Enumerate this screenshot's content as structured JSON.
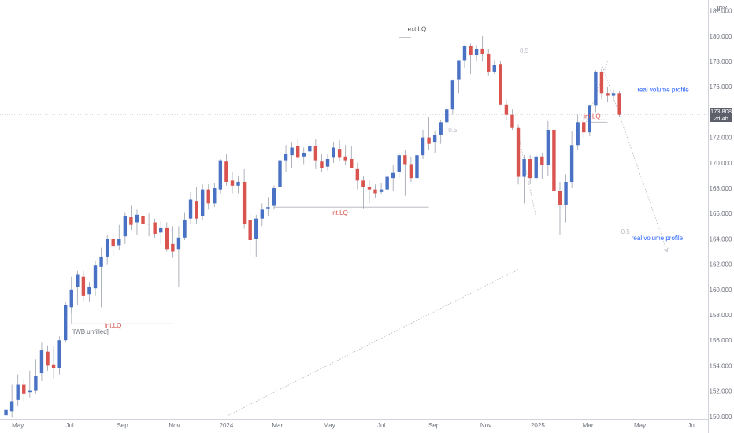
{
  "currency": "JPY",
  "price_badge": {
    "price": "173.808",
    "countdown": "2d 4h"
  },
  "colors": {
    "up": "#4a72c4",
    "down": "#d9534f",
    "axis_text": "#6b6f7a",
    "line": "#b2b5be",
    "blue_text": "#2962ff",
    "red_text": "#d9534f"
  },
  "chart_data": {
    "type": "candlestick",
    "timeframe": "weekly",
    "ylim": [
      149.8,
      182.6
    ],
    "xlim": [
      "2023-04-10",
      "2025-07-20"
    ],
    "y_ticks": [
      "150.000",
      "152.000",
      "154.000",
      "156.000",
      "158.000",
      "160.000",
      "162.000",
      "164.000",
      "166.000",
      "168.000",
      "170.000",
      "172.000",
      "174.000",
      "176.000",
      "178.000",
      "180.000",
      "182.000"
    ],
    "x_ticks": [
      {
        "label": "May",
        "date": "2023-05-01"
      },
      {
        "label": "Jul",
        "date": "2023-07-01"
      },
      {
        "label": "Sep",
        "date": "2023-09-01"
      },
      {
        "label": "Nov",
        "date": "2023-11-01"
      },
      {
        "label": "2024",
        "date": "2024-01-01"
      },
      {
        "label": "Mar",
        "date": "2024-03-01"
      },
      {
        "label": "May",
        "date": "2024-05-01"
      },
      {
        "label": "Jul",
        "date": "2024-07-01"
      },
      {
        "label": "Sep",
        "date": "2024-09-01"
      },
      {
        "label": "Nov",
        "date": "2024-11-01"
      },
      {
        "label": "2025",
        "date": "2025-01-01"
      },
      {
        "label": "Mar",
        "date": "2025-03-01"
      },
      {
        "label": "May",
        "date": "2025-05-01"
      },
      {
        "label": "Jul",
        "date": "2025-07-01"
      }
    ],
    "candles": [
      {
        "date": "2023-04-17",
        "o": 150.1,
        "h": 150.7,
        "l": 149.7,
        "c": 150.5
      },
      {
        "date": "2023-04-24",
        "o": 150.4,
        "h": 152.5,
        "l": 149.9,
        "c": 151.2
      },
      {
        "date": "2023-05-01",
        "o": 151.3,
        "h": 153.3,
        "l": 150.8,
        "c": 152.5
      },
      {
        "date": "2023-05-08",
        "o": 152.5,
        "h": 152.9,
        "l": 151.2,
        "c": 151.8
      },
      {
        "date": "2023-05-15",
        "o": 151.9,
        "h": 153.6,
        "l": 151.5,
        "c": 152.0
      },
      {
        "date": "2023-05-22",
        "o": 152.0,
        "h": 154.5,
        "l": 151.8,
        "c": 153.2
      },
      {
        "date": "2023-05-29",
        "o": 153.4,
        "h": 155.8,
        "l": 152.8,
        "c": 155.2
      },
      {
        "date": "2023-06-05",
        "o": 155.1,
        "h": 155.6,
        "l": 153.6,
        "c": 154.0
      },
      {
        "date": "2023-06-12",
        "o": 154.1,
        "h": 155.5,
        "l": 153.0,
        "c": 153.8
      },
      {
        "date": "2023-06-19",
        "o": 153.8,
        "h": 156.3,
        "l": 153.3,
        "c": 156.0
      },
      {
        "date": "2023-06-26",
        "o": 156.0,
        "h": 159.0,
        "l": 155.8,
        "c": 158.8
      },
      {
        "date": "2023-07-03",
        "o": 158.6,
        "h": 161.0,
        "l": 158.1,
        "c": 160.0
      },
      {
        "date": "2023-07-10",
        "o": 160.2,
        "h": 161.5,
        "l": 158.8,
        "c": 161.2
      },
      {
        "date": "2023-07-17",
        "o": 161.0,
        "h": 161.5,
        "l": 159.1,
        "c": 159.5
      },
      {
        "date": "2023-07-24",
        "o": 159.6,
        "h": 160.6,
        "l": 159.0,
        "c": 160.2
      },
      {
        "date": "2023-07-31",
        "o": 160.1,
        "h": 162.3,
        "l": 159.5,
        "c": 161.9
      },
      {
        "date": "2023-08-07",
        "o": 161.8,
        "h": 163.3,
        "l": 158.6,
        "c": 162.6
      },
      {
        "date": "2023-08-14",
        "o": 162.6,
        "h": 164.3,
        "l": 162.0,
        "c": 164.0
      },
      {
        "date": "2023-08-21",
        "o": 164.0,
        "h": 164.4,
        "l": 162.6,
        "c": 163.4
      },
      {
        "date": "2023-08-28",
        "o": 163.5,
        "h": 165.1,
        "l": 163.1,
        "c": 164.0
      },
      {
        "date": "2023-09-04",
        "o": 164.2,
        "h": 166.1,
        "l": 163.6,
        "c": 165.8
      },
      {
        "date": "2023-09-11",
        "o": 165.7,
        "h": 166.6,
        "l": 164.7,
        "c": 165.1
      },
      {
        "date": "2023-09-18",
        "o": 165.3,
        "h": 166.3,
        "l": 164.3,
        "c": 165.9
      },
      {
        "date": "2023-09-25",
        "o": 165.8,
        "h": 166.6,
        "l": 164.6,
        "c": 165.2
      },
      {
        "date": "2023-10-02",
        "o": 165.2,
        "h": 166.0,
        "l": 164.2,
        "c": 165.2
      },
      {
        "date": "2023-10-09",
        "o": 165.3,
        "h": 165.6,
        "l": 164.1,
        "c": 164.4
      },
      {
        "date": "2023-10-16",
        "o": 164.5,
        "h": 165.4,
        "l": 163.6,
        "c": 164.9
      },
      {
        "date": "2023-10-23",
        "o": 164.9,
        "h": 165.3,
        "l": 163.0,
        "c": 163.2
      },
      {
        "date": "2023-10-30",
        "o": 163.6,
        "h": 165.0,
        "l": 162.5,
        "c": 163.0
      },
      {
        "date": "2023-11-06",
        "o": 163.2,
        "h": 165.0,
        "l": 160.2,
        "c": 164.1
      },
      {
        "date": "2023-11-13",
        "o": 164.1,
        "h": 166.1,
        "l": 163.9,
        "c": 165.5
      },
      {
        "date": "2023-11-20",
        "o": 165.6,
        "h": 167.7,
        "l": 165.2,
        "c": 167.1
      },
      {
        "date": "2023-11-27",
        "o": 167.0,
        "h": 168.1,
        "l": 165.2,
        "c": 165.6
      },
      {
        "date": "2023-12-04",
        "o": 165.8,
        "h": 168.3,
        "l": 165.5,
        "c": 167.9
      },
      {
        "date": "2023-12-11",
        "o": 167.9,
        "h": 168.3,
        "l": 166.3,
        "c": 166.8
      },
      {
        "date": "2023-12-18",
        "o": 166.8,
        "h": 168.4,
        "l": 166.5,
        "c": 168.0
      },
      {
        "date": "2023-12-25",
        "o": 167.9,
        "h": 170.3,
        "l": 167.6,
        "c": 170.2
      },
      {
        "date": "2024-01-01",
        "o": 170.1,
        "h": 170.7,
        "l": 168.2,
        "c": 168.5
      },
      {
        "date": "2024-01-08",
        "o": 168.6,
        "h": 169.3,
        "l": 167.6,
        "c": 168.2
      },
      {
        "date": "2024-01-15",
        "o": 168.2,
        "h": 169.0,
        "l": 167.6,
        "c": 168.5
      },
      {
        "date": "2024-01-22",
        "o": 168.5,
        "h": 169.5,
        "l": 164.8,
        "c": 165.2
      },
      {
        "date": "2024-01-29",
        "o": 165.5,
        "h": 166.0,
        "l": 162.8,
        "c": 163.9
      },
      {
        "date": "2024-02-05",
        "o": 164.0,
        "h": 165.9,
        "l": 162.6,
        "c": 165.6
      },
      {
        "date": "2024-02-12",
        "o": 165.6,
        "h": 166.8,
        "l": 165.0,
        "c": 166.3
      },
      {
        "date": "2024-02-19",
        "o": 166.4,
        "h": 167.3,
        "l": 165.8,
        "c": 166.5
      },
      {
        "date": "2024-02-26",
        "o": 166.6,
        "h": 168.2,
        "l": 166.3,
        "c": 168.0
      },
      {
        "date": "2024-03-04",
        "o": 168.1,
        "h": 170.6,
        "l": 167.9,
        "c": 170.2
      },
      {
        "date": "2024-03-11",
        "o": 170.2,
        "h": 171.4,
        "l": 169.3,
        "c": 170.7
      },
      {
        "date": "2024-03-18",
        "o": 170.6,
        "h": 171.6,
        "l": 169.6,
        "c": 171.2
      },
      {
        "date": "2024-03-25",
        "o": 171.3,
        "h": 171.9,
        "l": 170.3,
        "c": 170.4
      },
      {
        "date": "2024-04-01",
        "o": 170.5,
        "h": 171.2,
        "l": 169.9,
        "c": 170.8
      },
      {
        "date": "2024-04-08",
        "o": 170.9,
        "h": 171.7,
        "l": 170.0,
        "c": 171.3
      },
      {
        "date": "2024-04-15",
        "o": 171.3,
        "h": 171.9,
        "l": 169.5,
        "c": 170.2
      },
      {
        "date": "2024-04-22",
        "o": 170.1,
        "h": 170.7,
        "l": 169.3,
        "c": 169.6
      },
      {
        "date": "2024-04-29",
        "o": 169.7,
        "h": 170.7,
        "l": 169.4,
        "c": 170.3
      },
      {
        "date": "2024-05-06",
        "o": 170.4,
        "h": 171.6,
        "l": 170.0,
        "c": 171.2
      },
      {
        "date": "2024-05-13",
        "o": 171.1,
        "h": 171.8,
        "l": 170.1,
        "c": 170.4
      },
      {
        "date": "2024-05-20",
        "o": 170.5,
        "h": 171.4,
        "l": 169.8,
        "c": 170.2
      },
      {
        "date": "2024-05-27",
        "o": 170.3,
        "h": 171.3,
        "l": 169.9,
        "c": 169.6
      },
      {
        "date": "2024-06-03",
        "o": 169.5,
        "h": 170.0,
        "l": 167.9,
        "c": 168.6
      },
      {
        "date": "2024-06-10",
        "o": 168.6,
        "h": 169.0,
        "l": 166.4,
        "c": 168.1
      },
      {
        "date": "2024-06-17",
        "o": 168.1,
        "h": 168.6,
        "l": 166.8,
        "c": 167.9
      },
      {
        "date": "2024-06-24",
        "o": 167.9,
        "h": 168.3,
        "l": 167.2,
        "c": 167.6
      },
      {
        "date": "2024-07-01",
        "o": 167.7,
        "h": 168.4,
        "l": 167.5,
        "c": 167.9
      },
      {
        "date": "2024-07-08",
        "o": 167.9,
        "h": 169.1,
        "l": 167.8,
        "c": 168.9
      },
      {
        "date": "2024-07-15",
        "o": 168.8,
        "h": 169.8,
        "l": 167.8,
        "c": 169.2
      },
      {
        "date": "2024-07-22",
        "o": 169.3,
        "h": 170.8,
        "l": 168.8,
        "c": 170.6
      },
      {
        "date": "2024-07-29",
        "o": 170.6,
        "h": 171.0,
        "l": 167.4,
        "c": 169.9
      },
      {
        "date": "2024-08-05",
        "o": 169.9,
        "h": 170.5,
        "l": 168.5,
        "c": 168.8
      },
      {
        "date": "2024-08-12",
        "o": 168.8,
        "h": 176.8,
        "l": 168.2,
        "c": 170.6
      },
      {
        "date": "2024-08-19",
        "o": 170.6,
        "h": 172.6,
        "l": 170.3,
        "c": 172.0
      },
      {
        "date": "2024-08-26",
        "o": 172.0,
        "h": 173.6,
        "l": 171.0,
        "c": 171.5
      },
      {
        "date": "2024-09-02",
        "o": 171.6,
        "h": 172.5,
        "l": 170.8,
        "c": 172.2
      },
      {
        "date": "2024-09-09",
        "o": 172.2,
        "h": 173.4,
        "l": 171.5,
        "c": 173.2
      },
      {
        "date": "2024-09-16",
        "o": 173.2,
        "h": 174.5,
        "l": 172.7,
        "c": 174.2
      },
      {
        "date": "2024-09-23",
        "o": 174.2,
        "h": 176.6,
        "l": 173.8,
        "c": 176.5
      },
      {
        "date": "2024-09-30",
        "o": 176.6,
        "h": 178.1,
        "l": 175.5,
        "c": 178.1
      },
      {
        "date": "2024-10-07",
        "o": 178.1,
        "h": 179.3,
        "l": 177.5,
        "c": 179.2
      },
      {
        "date": "2024-10-14",
        "o": 179.2,
        "h": 179.4,
        "l": 177.0,
        "c": 178.5
      },
      {
        "date": "2024-10-21",
        "o": 178.5,
        "h": 179.3,
        "l": 178.0,
        "c": 179.0
      },
      {
        "date": "2024-10-28",
        "o": 179.0,
        "h": 180.0,
        "l": 178.0,
        "c": 178.6
      },
      {
        "date": "2024-11-04",
        "o": 178.6,
        "h": 179.0,
        "l": 176.9,
        "c": 177.2
      },
      {
        "date": "2024-11-11",
        "o": 177.2,
        "h": 178.1,
        "l": 177.0,
        "c": 177.7
      },
      {
        "date": "2024-11-18",
        "o": 177.8,
        "h": 178.0,
        "l": 174.5,
        "c": 174.6
      },
      {
        "date": "2024-11-25",
        "o": 174.6,
        "h": 175.0,
        "l": 173.4,
        "c": 173.8
      },
      {
        "date": "2024-12-02",
        "o": 173.8,
        "h": 174.2,
        "l": 172.6,
        "c": 172.8
      },
      {
        "date": "2024-12-09",
        "o": 172.8,
        "h": 173.0,
        "l": 168.3,
        "c": 168.9
      },
      {
        "date": "2024-12-16",
        "o": 168.9,
        "h": 170.6,
        "l": 166.8,
        "c": 170.3
      },
      {
        "date": "2024-12-23",
        "o": 170.3,
        "h": 170.6,
        "l": 168.3,
        "c": 168.8
      },
      {
        "date": "2024-12-30",
        "o": 168.8,
        "h": 170.7,
        "l": 168.6,
        "c": 170.5
      },
      {
        "date": "2025-01-06",
        "o": 170.5,
        "h": 170.8,
        "l": 168.7,
        "c": 169.8
      },
      {
        "date": "2025-01-13",
        "o": 169.8,
        "h": 173.3,
        "l": 169.0,
        "c": 172.6
      },
      {
        "date": "2025-01-20",
        "o": 172.6,
        "h": 173.2,
        "l": 167.0,
        "c": 167.8
      },
      {
        "date": "2025-01-27",
        "o": 167.8,
        "h": 168.5,
        "l": 164.3,
        "c": 166.7
      },
      {
        "date": "2025-02-03",
        "o": 166.7,
        "h": 169.1,
        "l": 165.3,
        "c": 168.5
      },
      {
        "date": "2025-02-10",
        "o": 168.5,
        "h": 172.5,
        "l": 168.0,
        "c": 171.4
      },
      {
        "date": "2025-02-17",
        "o": 171.4,
        "h": 173.8,
        "l": 171.0,
        "c": 173.2
      },
      {
        "date": "2025-02-24",
        "o": 173.2,
        "h": 173.8,
        "l": 172.0,
        "c": 172.4
      },
      {
        "date": "2025-03-03",
        "o": 172.4,
        "h": 174.6,
        "l": 172.1,
        "c": 174.5
      },
      {
        "date": "2025-03-10",
        "o": 174.5,
        "h": 177.3,
        "l": 174.0,
        "c": 177.2
      },
      {
        "date": "2025-03-17",
        "o": 177.2,
        "h": 177.4,
        "l": 175.0,
        "c": 175.5
      },
      {
        "date": "2025-03-24",
        "o": 175.5,
        "h": 176.0,
        "l": 174.8,
        "c": 175.3
      },
      {
        "date": "2025-03-31",
        "o": 175.3,
        "h": 175.8,
        "l": 174.9,
        "c": 175.5
      },
      {
        "date": "2025-04-07",
        "o": 175.5,
        "h": 175.7,
        "l": 173.6,
        "c": 173.8
      }
    ],
    "lines": [
      {
        "kind": "solid",
        "from": {
          "date": "2023-07-03",
          "price": 157.3
        },
        "to": {
          "date": "2023-10-30",
          "price": 157.3
        }
      },
      {
        "kind": "solid",
        "from": {
          "date": "2023-07-03",
          "price": 157.3
        },
        "to": {
          "date": "2023-07-03",
          "price": 159.4
        }
      },
      {
        "kind": "solid",
        "from": {
          "date": "2024-01-29",
          "price": 164.0
        },
        "to": {
          "date": "2025-04-07",
          "price": 164.0
        }
      },
      {
        "kind": "solid",
        "from": {
          "date": "2024-02-26",
          "price": 166.5
        },
        "to": {
          "date": "2024-08-26",
          "price": 166.5
        }
      },
      {
        "kind": "solid",
        "from": {
          "date": "2024-07-22",
          "price": 179.9
        },
        "to": {
          "date": "2024-08-05",
          "price": 179.9
        }
      },
      {
        "kind": "solid",
        "from": {
          "date": "2025-03-03",
          "price": 173.2
        },
        "to": {
          "date": "2025-03-24",
          "price": 173.2
        }
      },
      {
        "kind": "dotted",
        "from": {
          "date": "2024-01-01",
          "price": 150.0
        },
        "to": {
          "date": "2024-12-09",
          "price": 161.6
        }
      },
      {
        "kind": "dotted",
        "from": {
          "date": "2025-03-17",
          "price": 177.8
        },
        "to": {
          "date": "2025-06-02",
          "price": 163.0
        }
      },
      {
        "kind": "dotted",
        "from": {
          "date": "2024-12-30",
          "price": 165.7
        },
        "to": {
          "date": "2024-12-09",
          "price": 172.3
        }
      },
      {
        "kind": "dotted",
        "from": {
          "date": "2025-02-24",
          "price": 172.6
        },
        "to": {
          "date": "2025-03-24",
          "price": 178.0
        }
      },
      {
        "kind": "dotted",
        "from": {
          "date": "2025-02-24",
          "price": 173.4
        },
        "to": {
          "date": "2025-03-24",
          "price": 173.4
        }
      }
    ],
    "annotations": [
      {
        "text": "[IWB unfilled]",
        "date": "2023-07-03",
        "price": 156.5,
        "color": "#6b6f7a",
        "anchor": "start"
      },
      {
        "text": "int.LQ",
        "date": "2023-08-21",
        "price": 157.0,
        "color": "#d9534f",
        "anchor": "middle"
      },
      {
        "text": "int.LQ",
        "date": "2024-05-13",
        "price": 165.9,
        "color": "#d9534f",
        "anchor": "middle"
      },
      {
        "text": "ext.LQ",
        "date": "2024-08-12",
        "price": 180.4,
        "color": "#555555",
        "anchor": "middle"
      },
      {
        "text": "int.LQ",
        "date": "2025-02-24",
        "price": 173.5,
        "color": "#d9534f",
        "anchor": "start"
      },
      {
        "text": "0.5",
        "date": "2024-09-23",
        "price": 172.4,
        "color": "#b8bbc4",
        "anchor": "middle"
      },
      {
        "text": "0.5",
        "date": "2025-04-14",
        "price": 164.4,
        "color": "#b8bbc4",
        "anchor": "middle"
      },
      {
        "text": "0.5",
        "date": "2024-12-16",
        "price": 178.7,
        "color": "#b8bbc4",
        "anchor": "middle"
      },
      {
        "text": "real volume profile",
        "date": "2025-04-28",
        "price": 175.6,
        "color": "#2962ff",
        "anchor": "start"
      },
      {
        "text": "real volume profile",
        "date": "2025-04-21",
        "price": 163.9,
        "color": "#2962ff",
        "anchor": "start"
      }
    ],
    "current_price": 173.808
  }
}
